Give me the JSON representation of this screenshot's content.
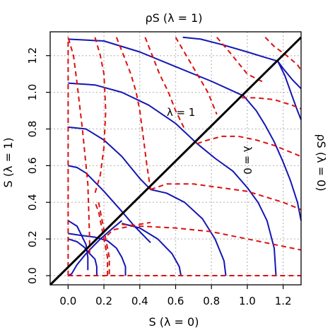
{
  "chart_data": {
    "type": "line",
    "top_title": "ρS (λ = 1)",
    "xlabel": "S (λ = 0)",
    "ylabel": "S (λ = 1)",
    "right_label": "ρS (λ = 0)",
    "xlim": [
      -0.1,
      1.3
    ],
    "ylim": [
      -0.05,
      1.33
    ],
    "xticks": [
      0.0,
      0.2,
      0.4,
      0.6,
      0.8,
      1.0,
      1.2
    ],
    "xtick_labels": [
      "0.0",
      "0.2",
      "0.4",
      "0.6",
      "0.8",
      "1.0",
      "1.2"
    ],
    "yticks": [
      0.0,
      0.2,
      0.4,
      0.6,
      0.8,
      1.0,
      1.2
    ],
    "ytick_labels": [
      "0.0",
      "0.2",
      "0.4",
      "0.6",
      "0.8",
      "1.0",
      "1.2"
    ],
    "grid": true,
    "annotations": [
      {
        "text": "λ = 1",
        "x": 0.63,
        "y": 0.89,
        "rotation": 0
      },
      {
        "text": "λ = 0",
        "x": 0.98,
        "y": 0.63,
        "rotation": 90
      }
    ],
    "colors": {
      "blue": "#1515b5",
      "red": "#dd1010",
      "diagonal": "#000000",
      "grid": "#bfbfbf"
    },
    "diagonal": {
      "x": [
        -0.1,
        1.3
      ],
      "y": [
        -0.05,
        1.3
      ]
    },
    "series": [
      {
        "color": "blue",
        "x": [
          0.16,
          0.16,
          0.15,
          0.12,
          0.09,
          0.05,
          0.0
        ],
        "y": [
          0.0,
          0.05,
          0.09,
          0.12,
          0.155,
          0.185,
          0.2
        ]
      },
      {
        "color": "blue",
        "x": [
          0.32,
          0.32,
          0.3,
          0.27,
          0.22,
          0.15,
          0.07,
          0.0
        ],
        "y": [
          0.0,
          0.05,
          0.1,
          0.15,
          0.19,
          0.21,
          0.22,
          0.23
        ]
      },
      {
        "color": "blue",
        "x": [
          0.63,
          0.62,
          0.58,
          0.5,
          0.4,
          0.3
        ],
        "y": [
          0.0,
          0.05,
          0.12,
          0.2,
          0.26,
          0.285
        ]
      },
      {
        "color": "blue",
        "x": [
          0.3,
          0.25,
          0.18,
          0.1,
          0.05,
          0.02,
          0.0
        ],
        "y": [
          0.3,
          0.26,
          0.2,
          0.12,
          0.06,
          0.01,
          0.0
        ]
      },
      {
        "color": "blue",
        "x": [
          0.0,
          0.05,
          0.1,
          0.11,
          0.11
        ],
        "y": [
          0.3,
          0.27,
          0.17,
          0.1,
          0.03
        ]
      },
      {
        "color": "blue",
        "x": [
          0.0,
          0.05,
          0.1,
          0.2,
          0.3,
          0.37,
          0.46
        ],
        "y": [
          0.6,
          0.59,
          0.56,
          0.46,
          0.35,
          0.27,
          0.18
        ]
      },
      {
        "color": "blue",
        "x": [
          0.46,
          0.55,
          0.65,
          0.75,
          0.82,
          0.87,
          0.88
        ],
        "y": [
          0.47,
          0.45,
          0.4,
          0.31,
          0.2,
          0.08,
          0.0
        ]
      },
      {
        "color": "blue",
        "x": [
          0.0,
          0.1,
          0.2,
          0.3,
          0.4,
          0.46
        ],
        "y": [
          0.81,
          0.8,
          0.74,
          0.65,
          0.53,
          0.47
        ]
      },
      {
        "color": "blue",
        "x": [
          0.0,
          0.15,
          0.3,
          0.45,
          0.6,
          0.72
        ],
        "y": [
          1.05,
          1.04,
          1.0,
          0.93,
          0.83,
          0.72
        ]
      },
      {
        "color": "blue",
        "x": [
          0.72,
          0.82,
          0.92,
          1.0,
          1.06,
          1.11,
          1.15,
          1.16
        ],
        "y": [
          0.72,
          0.64,
          0.57,
          0.48,
          0.4,
          0.3,
          0.15,
          0.0
        ]
      },
      {
        "color": "blue",
        "x": [
          0.0,
          0.2,
          0.4,
          0.6,
          0.8,
          0.98
        ],
        "y": [
          1.29,
          1.28,
          1.22,
          1.14,
          1.06,
          0.98
        ]
      },
      {
        "color": "blue",
        "x": [
          0.98,
          1.05,
          1.1,
          1.15,
          1.2,
          1.24,
          1.28,
          1.3
        ],
        "y": [
          0.98,
          0.9,
          0.82,
          0.73,
          0.62,
          0.52,
          0.4,
          0.3
        ]
      },
      {
        "color": "blue",
        "x": [
          0.64,
          0.74,
          0.86,
          1.0,
          1.1,
          1.17
        ],
        "y": [
          1.3,
          1.29,
          1.26,
          1.22,
          1.19,
          1.17
        ]
      },
      {
        "color": "blue",
        "x": [
          1.17,
          1.2,
          1.25,
          1.3
        ],
        "y": [
          1.17,
          1.13,
          1.07,
          1.02
        ]
      },
      {
        "color": "blue",
        "x": [
          1.17,
          1.21,
          1.25,
          1.28,
          1.3
        ],
        "y": [
          1.17,
          1.09,
          0.98,
          0.9,
          0.85
        ]
      },
      {
        "color": "red",
        "x": [
          0.0,
          0.0,
          0.0,
          0.0
        ],
        "y": [
          0.0,
          0.5,
          1.0,
          1.3
        ]
      },
      {
        "color": "red",
        "x": [
          0.12,
          0.12,
          0.11,
          0.08,
          0.05,
          0.03,
          0.0
        ],
        "y": [
          0.12,
          0.2,
          0.5,
          0.8,
          1.05,
          1.2,
          1.3
        ]
      },
      {
        "color": "red",
        "x": [
          0.22,
          0.22,
          0.2,
          0.18,
          0.17,
          0.15
        ],
        "y": [
          0.0,
          0.1,
          0.2,
          0.3,
          0.35,
          0.4
        ]
      },
      {
        "color": "red",
        "x": [
          0.17,
          0.2,
          0.22,
          0.23,
          0.23
        ],
        "y": [
          0.4,
          0.25,
          0.15,
          0.1,
          0.0
        ]
      },
      {
        "color": "red",
        "x": [
          0.22,
          0.25,
          0.3,
          0.35,
          0.4,
          0.46
        ],
        "y": [
          0.22,
          0.25,
          0.26,
          0.27,
          0.28,
          0.29
        ]
      },
      {
        "color": "red",
        "x": [
          0.15,
          0.18,
          0.2,
          0.21,
          0.2,
          0.18,
          0.15
        ],
        "y": [
          1.3,
          1.2,
          1.1,
          0.9,
          0.7,
          0.55,
          0.45
        ]
      },
      {
        "color": "red",
        "x": [
          0.27,
          0.31,
          0.35,
          0.38,
          0.4,
          0.42,
          0.44,
          0.46
        ],
        "y": [
          1.3,
          1.2,
          1.1,
          1.0,
          0.9,
          0.75,
          0.6,
          0.47
        ]
      },
      {
        "color": "red",
        "x": [
          0.3,
          0.4,
          0.5,
          0.6,
          0.7,
          0.8,
          0.9,
          1.0,
          1.1,
          1.2,
          1.3
        ],
        "y": [
          0.28,
          0.27,
          0.265,
          0.26,
          0.25,
          0.24,
          0.22,
          0.2,
          0.18,
          0.16,
          0.14
        ]
      },
      {
        "color": "red",
        "x": [
          0.46,
          0.55,
          0.7,
          0.85,
          1.0,
          1.1,
          1.2,
          1.3
        ],
        "y": [
          0.47,
          0.5,
          0.5,
          0.48,
          0.46,
          0.43,
          0.4,
          0.36
        ]
      },
      {
        "color": "red",
        "x": [
          0.43,
          0.47,
          0.51,
          0.56,
          0.6,
          0.65
        ],
        "y": [
          1.3,
          1.2,
          1.1,
          1.0,
          0.9,
          0.8
        ]
      },
      {
        "color": "red",
        "x": [
          0.6,
          0.66,
          0.72,
          0.78,
          0.83
        ],
        "y": [
          1.3,
          1.2,
          1.1,
          1.0,
          0.88
        ]
      },
      {
        "color": "red",
        "x": [
          0.72,
          0.78,
          0.86,
          0.95,
          1.05,
          1.15,
          1.25,
          1.3
        ],
        "y": [
          0.72,
          0.74,
          0.76,
          0.76,
          0.74,
          0.71,
          0.67,
          0.65
        ]
      },
      {
        "color": "red",
        "x": [
          0.97,
          1.05,
          1.15,
          1.25,
          1.3
        ],
        "y": [
          0.97,
          0.97,
          0.96,
          0.93,
          0.91
        ]
      },
      {
        "color": "red",
        "x": [
          0.83,
          0.9,
          1.0,
          1.1
        ],
        "y": [
          1.3,
          1.22,
          1.1,
          1.05
        ]
      },
      {
        "color": "red",
        "x": [
          1.1,
          1.15,
          1.22,
          1.28,
          1.3
        ],
        "y": [
          1.3,
          1.25,
          1.2,
          1.15,
          1.12
        ]
      },
      {
        "color": "red",
        "x": [
          0.0,
          0.3,
          0.6,
          0.9,
          1.2,
          1.3
        ],
        "y": [
          0.0,
          0.0,
          0.0,
          0.0,
          0.0,
          0.0
        ]
      }
    ]
  }
}
